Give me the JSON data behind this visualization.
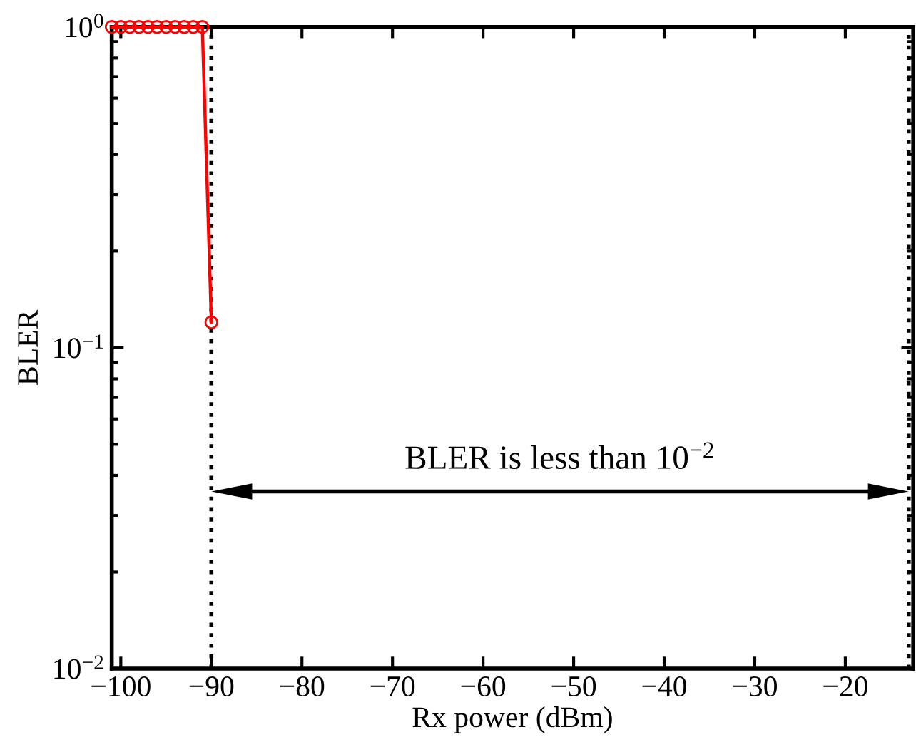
{
  "chart_data": {
    "type": "line",
    "xlabel": "Rx power (dBm)",
    "ylabel": "BLER",
    "x": [
      -101,
      -100,
      -99,
      -98,
      -97,
      -96,
      -95,
      -94,
      -93,
      -92,
      -91,
      -90
    ],
    "series": [
      {
        "color": "#ff0000",
        "values": [
          1,
          1,
          1,
          1,
          1,
          1,
          1,
          1,
          1,
          1,
          1,
          0.12
        ]
      }
    ],
    "marker": "circle",
    "line_style": "solid",
    "log": "y",
    "grid": false,
    "legend": false,
    "xlim": [
      -101,
      -12.5
    ],
    "ylim": [
      0.01,
      1
    ],
    "xticks": [
      {
        "value": -100,
        "label": "−100"
      },
      {
        "value": -90,
        "label": "−90"
      },
      {
        "value": -80,
        "label": "−80"
      },
      {
        "value": -70,
        "label": "−70"
      },
      {
        "value": -60,
        "label": "−60"
      },
      {
        "value": -50,
        "label": "−50"
      },
      {
        "value": -40,
        "label": "−40"
      },
      {
        "value": -30,
        "label": "−30"
      },
      {
        "value": -20,
        "label": "−20"
      }
    ],
    "yticks": [
      {
        "value": 0.01,
        "label": "10$^{−2}$"
      },
      {
        "value": 0.1,
        "label": "10$^{−1}$"
      },
      {
        "value": 1,
        "label": "10$^{0}$"
      }
    ],
    "ref_lines": [
      {
        "axis": "x",
        "value": -90,
        "color": "#000000",
        "line_style": "dotted"
      },
      {
        "axis": "x",
        "value": -13,
        "color": "#000000",
        "line_style": "dotted"
      }
    ],
    "annotations": [
      "BLER is less than 10$^{−2}$"
    ]
  }
}
